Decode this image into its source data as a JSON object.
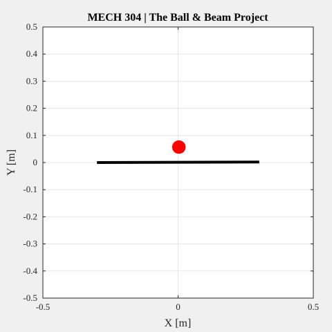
{
  "chart_data": {
    "type": "scatter",
    "title": "MECH 304 | The Ball & Beam Project",
    "xlabel": "X [m]",
    "ylabel": "Y [m]",
    "xlim": [
      -0.5,
      0.5
    ],
    "ylim": [
      -0.5,
      0.5
    ],
    "xticks": [
      -0.5,
      0,
      0.5
    ],
    "xtick_labels": [
      "-0.5",
      "0",
      "0.5"
    ],
    "yticks": [
      0.5,
      0.4,
      0.3,
      0.2,
      0.1,
      0,
      -0.1,
      -0.2,
      -0.3,
      -0.4,
      -0.5
    ],
    "ytick_labels": [
      "0.5",
      "0.4",
      "0.3",
      "0.2",
      "0.1",
      "0",
      "-0.1",
      "-0.2",
      "-0.3",
      "-0.4",
      "-0.5"
    ],
    "grid": true,
    "beam": {
      "x": [
        -0.3,
        0.3
      ],
      "y": [
        0.0,
        0.002
      ],
      "color": "#000000"
    },
    "ball": {
      "x": 0.003,
      "y": 0.057,
      "radius": 0.05,
      "color": "#ff0000"
    },
    "colors": {
      "background": "#f0f0f0",
      "axes": "#ffffff",
      "grid": "#e6e6e6",
      "axis_line": "#262626"
    }
  }
}
